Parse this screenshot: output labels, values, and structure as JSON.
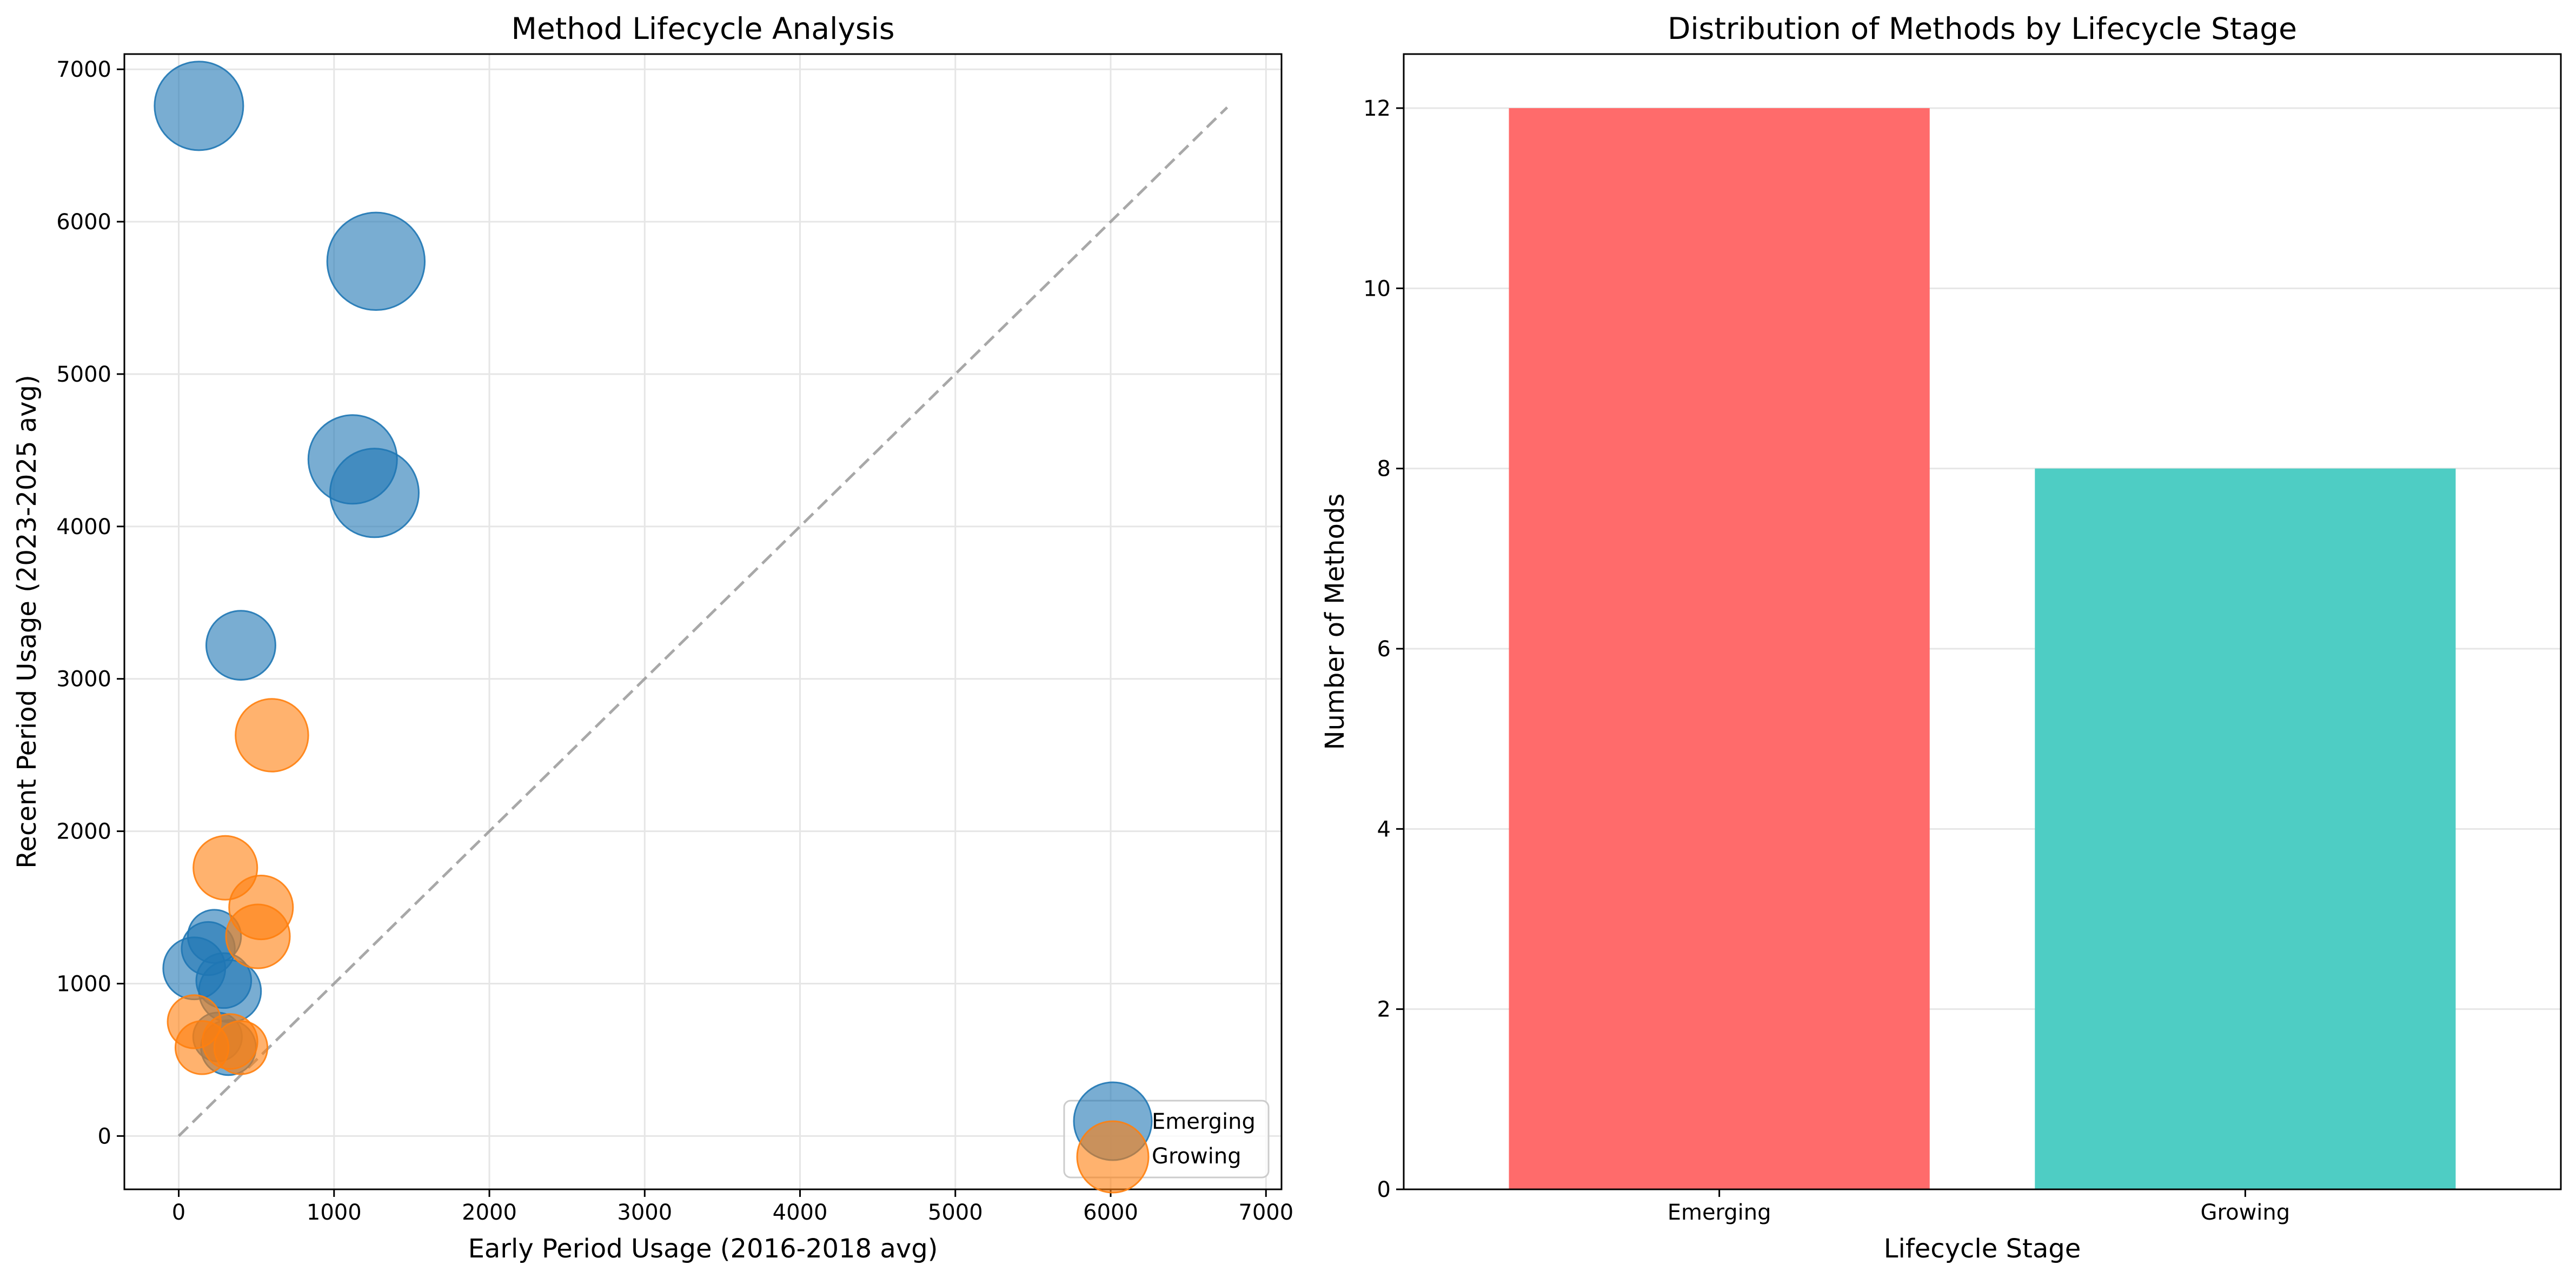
{
  "chart_data": [
    {
      "type": "scatter",
      "title": "Method Lifecycle Analysis",
      "xlabel": "Early Period Usage (2016-2018 avg)",
      "ylabel": "Recent Period Usage (2023-2025 avg)",
      "xlim": [
        -350,
        7100
      ],
      "ylim": [
        -350,
        7100
      ],
      "xticks": [
        0,
        1000,
        2000,
        3000,
        4000,
        5000,
        6000,
        7000
      ],
      "yticks": [
        0,
        1000,
        2000,
        3000,
        4000,
        5000,
        6000,
        7000
      ],
      "grid": true,
      "legend_position": "lower-right",
      "reference_line": {
        "from": [
          0,
          0
        ],
        "to": [
          6750,
          6750
        ],
        "style": "dashed",
        "color": "#999999"
      },
      "series": [
        {
          "name": "Emerging",
          "color": "#1f77b4",
          "points": [
            {
              "x": 130,
              "y": 6760,
              "size": 1.0
            },
            {
              "x": 1270,
              "y": 5740,
              "size": 1.1
            },
            {
              "x": 1120,
              "y": 4440,
              "size": 1.0
            },
            {
              "x": 1260,
              "y": 4220,
              "size": 1.0
            },
            {
              "x": 400,
              "y": 3220,
              "size": 0.78
            },
            {
              "x": 230,
              "y": 1310,
              "size": 0.6
            },
            {
              "x": 190,
              "y": 1230,
              "size": 0.6
            },
            {
              "x": 100,
              "y": 1100,
              "size": 0.7
            },
            {
              "x": 290,
              "y": 1020,
              "size": 0.62
            },
            {
              "x": 330,
              "y": 950,
              "size": 0.7
            },
            {
              "x": 250,
              "y": 650,
              "size": 0.55
            },
            {
              "x": 320,
              "y": 580,
              "size": 0.62
            }
          ]
        },
        {
          "name": "Growing",
          "color": "#ff7f0e",
          "points": [
            {
              "x": 600,
              "y": 2630,
              "size": 0.82
            },
            {
              "x": 300,
              "y": 1760,
              "size": 0.72
            },
            {
              "x": 530,
              "y": 1500,
              "size": 0.72
            },
            {
              "x": 510,
              "y": 1310,
              "size": 0.72
            },
            {
              "x": 100,
              "y": 750,
              "size": 0.6
            },
            {
              "x": 150,
              "y": 580,
              "size": 0.6
            },
            {
              "x": 330,
              "y": 620,
              "size": 0.62
            },
            {
              "x": 400,
              "y": 580,
              "size": 0.6
            }
          ]
        }
      ]
    },
    {
      "type": "bar",
      "title": "Distribution of Methods by Lifecycle Stage",
      "xlabel": "Lifecycle Stage",
      "ylabel": "Number of Methods",
      "categories": [
        "Emerging",
        "Growing"
      ],
      "values": [
        12,
        8
      ],
      "colors": [
        "#ff6b6b",
        "#4ecdc4"
      ],
      "ylim": [
        0,
        12.6
      ],
      "yticks": [
        0,
        2,
        4,
        6,
        8,
        10,
        12
      ],
      "grid": true
    }
  ]
}
